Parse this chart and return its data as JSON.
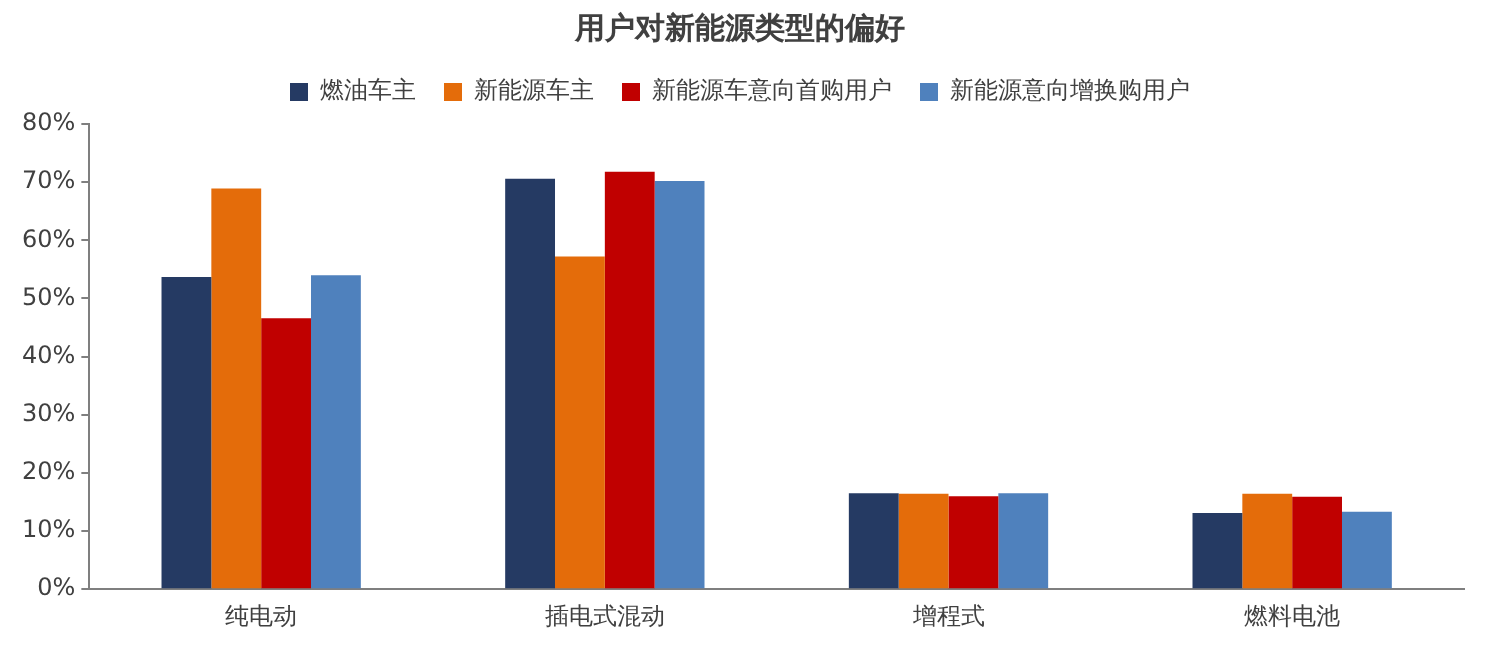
{
  "chart_data": {
    "type": "bar",
    "title": "用户对新能源类型的偏好",
    "categories": [
      "纯电动",
      "插电式混动",
      "增程式",
      "燃料电池"
    ],
    "series": [
      {
        "name": "燃油车主",
        "color": "#253a63",
        "values": [
          53.7,
          70.6,
          16.5,
          13.1
        ]
      },
      {
        "name": "新能源车主",
        "color": "#e46c0a",
        "values": [
          68.9,
          57.2,
          16.4,
          16.4
        ]
      },
      {
        "name": "新能源车意向首购用户",
        "color": "#c00000",
        "values": [
          46.6,
          71.8,
          16.0,
          15.9
        ]
      },
      {
        "name": "新能源意向增换购用户",
        "color": "#4f81bd",
        "values": [
          54.0,
          70.2,
          16.5,
          13.3
        ]
      }
    ],
    "ylim": [
      0,
      80
    ],
    "yticks": [
      {
        "value": 0,
        "label": "0%"
      },
      {
        "value": 10,
        "label": "10%"
      },
      {
        "value": 20,
        "label": "20%"
      },
      {
        "value": 30,
        "label": "30%"
      },
      {
        "value": 40,
        "label": "40%"
      },
      {
        "value": 50,
        "label": "50%"
      },
      {
        "value": 60,
        "label": "60%"
      },
      {
        "value": 70,
        "label": "70%"
      },
      {
        "value": 80,
        "label": "80%"
      }
    ],
    "grid": false,
    "legend": "top"
  }
}
